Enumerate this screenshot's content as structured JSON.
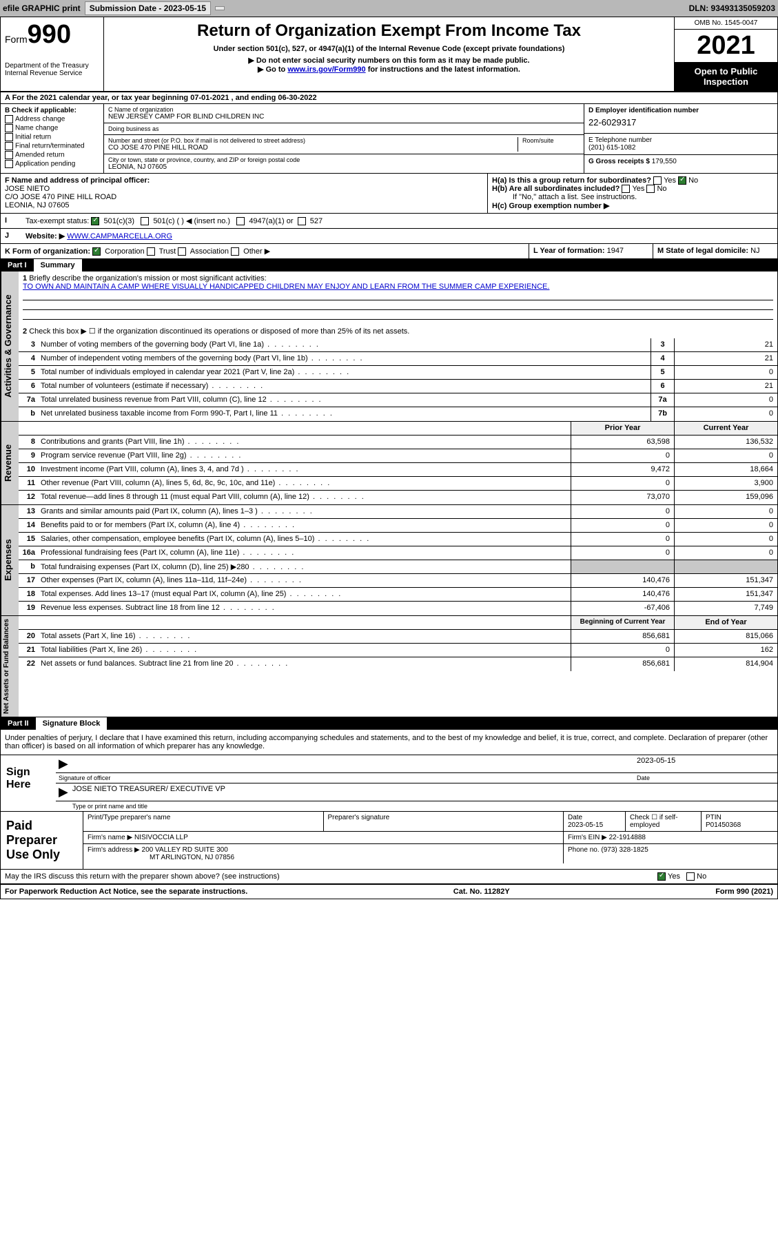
{
  "topbar": {
    "efile": "efile GRAPHIC print",
    "submission_label": "Submission Date - 2023-05-15",
    "dln_label": "DLN: 93493135059203"
  },
  "header": {
    "form_word": "Form",
    "form_num": "990",
    "title": "Return of Organization Exempt From Income Tax",
    "subtitle": "Under section 501(c), 527, or 4947(a)(1) of the Internal Revenue Code (except private foundations)",
    "note1": "▶ Do not enter social security numbers on this form as it may be made public.",
    "note2_pre": "▶ Go to ",
    "note2_link": "www.irs.gov/Form990",
    "note2_post": " for instructions and the latest information.",
    "dept": "Department of the Treasury\nInternal Revenue Service",
    "omb": "OMB No. 1545-0047",
    "year": "2021",
    "inspect": "Open to Public Inspection"
  },
  "lineA": "A For the 2021 calendar year, or tax year beginning 07-01-2021   , and ending 06-30-2022",
  "boxB": {
    "title": "B Check if applicable:",
    "opts": [
      "Address change",
      "Name change",
      "Initial return",
      "Final return/terminated",
      "Amended return",
      "Application pending"
    ]
  },
  "boxC": {
    "name_lab": "C Name of organization",
    "name": "NEW JERSEY CAMP FOR BLIND CHILDREN INC",
    "dba_lab": "Doing business as",
    "dba": "",
    "street_lab": "Number and street (or P.O. box if mail is not delivered to street address)",
    "room_lab": "Room/suite",
    "street": "CO JOSE 470 PINE HILL ROAD",
    "city_lab": "City or town, state or province, country, and ZIP or foreign postal code",
    "city": "LEONIA, NJ  07605"
  },
  "boxD": {
    "lab": "D Employer identification number",
    "val": "22-6029317"
  },
  "boxE": {
    "lab": "E Telephone number",
    "val": "(201) 615-1082"
  },
  "boxG": {
    "lab": "G Gross receipts $",
    "val": "179,550"
  },
  "boxF": {
    "lab": "F Name and address of principal officer:",
    "name": "JOSE NIETO",
    "addr1": "C/O JOSE 470 PINE HILL ROAD",
    "addr2": "LEONIA, NJ  07605"
  },
  "boxH": {
    "ha": "H(a)  Is this a group return for subordinates?",
    "hb": "H(b)  Are all subordinates included?",
    "hb_note": "If \"No,\" attach a list. See instructions.",
    "hc": "H(c)  Group exemption number ▶",
    "yes": "Yes",
    "no": "No"
  },
  "boxI": {
    "lab": "Tax-exempt status:",
    "o1": "501(c)(3)",
    "o2": "501(c) (   ) ◀ (insert no.)",
    "o3": "4947(a)(1) or",
    "o4": "527"
  },
  "boxJ": {
    "lab": "Website: ▶",
    "val": "WWW.CAMPMARCELLA.ORG"
  },
  "boxK": {
    "lab": "K Form of organization:",
    "o1": "Corporation",
    "o2": "Trust",
    "o3": "Association",
    "o4": "Other ▶"
  },
  "boxL": {
    "lab": "L Year of formation:",
    "val": "1947"
  },
  "boxM": {
    "lab": "M State of legal domicile:",
    "val": "NJ"
  },
  "part1": {
    "num": "Part I",
    "title": "Summary"
  },
  "summary": {
    "q1_lab": "Briefly describe the organization's mission or most significant activities:",
    "q1_val": "TO OWN AND MAINTAIN A CAMP WHERE VISUALLY HANDICAPPED CHILDREN MAY ENJOY AND LEARN FROM THE SUMMER CAMP EXPERIENCE.",
    "q2": "Check this box ▶ ☐  if the organization discontinued its operations or disposed of more than 25% of its net assets.",
    "rows_gov": [
      {
        "n": "3",
        "d": "Number of voting members of the governing body (Part VI, line 1a)",
        "box": "3",
        "v": "21"
      },
      {
        "n": "4",
        "d": "Number of independent voting members of the governing body (Part VI, line 1b)",
        "box": "4",
        "v": "21"
      },
      {
        "n": "5",
        "d": "Total number of individuals employed in calendar year 2021 (Part V, line 2a)",
        "box": "5",
        "v": "0"
      },
      {
        "n": "6",
        "d": "Total number of volunteers (estimate if necessary)",
        "box": "6",
        "v": "21"
      },
      {
        "n": "7a",
        "d": "Total unrelated business revenue from Part VIII, column (C), line 12",
        "box": "7a",
        "v": "0"
      },
      {
        "n": "b",
        "d": "Net unrelated business taxable income from Form 990-T, Part I, line 11",
        "box": "7b",
        "v": "0"
      }
    ],
    "col_py": "Prior Year",
    "col_cy": "Current Year",
    "rows_rev": [
      {
        "n": "8",
        "d": "Contributions and grants (Part VIII, line 1h)",
        "py": "63,598",
        "cy": "136,532"
      },
      {
        "n": "9",
        "d": "Program service revenue (Part VIII, line 2g)",
        "py": "0",
        "cy": "0"
      },
      {
        "n": "10",
        "d": "Investment income (Part VIII, column (A), lines 3, 4, and 7d )",
        "py": "9,472",
        "cy": "18,664"
      },
      {
        "n": "11",
        "d": "Other revenue (Part VIII, column (A), lines 5, 6d, 8c, 9c, 10c, and 11e)",
        "py": "0",
        "cy": "3,900"
      },
      {
        "n": "12",
        "d": "Total revenue—add lines 8 through 11 (must equal Part VIII, column (A), line 12)",
        "py": "73,070",
        "cy": "159,096"
      }
    ],
    "rows_exp": [
      {
        "n": "13",
        "d": "Grants and similar amounts paid (Part IX, column (A), lines 1–3 )",
        "py": "0",
        "cy": "0"
      },
      {
        "n": "14",
        "d": "Benefits paid to or for members (Part IX, column (A), line 4)",
        "py": "0",
        "cy": "0"
      },
      {
        "n": "15",
        "d": "Salaries, other compensation, employee benefits (Part IX, column (A), lines 5–10)",
        "py": "0",
        "cy": "0"
      },
      {
        "n": "16a",
        "d": "Professional fundraising fees (Part IX, column (A), line 11e)",
        "py": "0",
        "cy": "0"
      },
      {
        "n": "b",
        "d": "Total fundraising expenses (Part IX, column (D), line 25) ▶280",
        "py": "",
        "cy": "",
        "shade": true
      },
      {
        "n": "17",
        "d": "Other expenses (Part IX, column (A), lines 11a–11d, 11f–24e)",
        "py": "140,476",
        "cy": "151,347"
      },
      {
        "n": "18",
        "d": "Total expenses. Add lines 13–17 (must equal Part IX, column (A), line 25)",
        "py": "140,476",
        "cy": "151,347"
      },
      {
        "n": "19",
        "d": "Revenue less expenses. Subtract line 18 from line 12",
        "py": "-67,406",
        "cy": "7,749"
      }
    ],
    "col_boy": "Beginning of Current Year",
    "col_eoy": "End of Year",
    "rows_na": [
      {
        "n": "20",
        "d": "Total assets (Part X, line 16)",
        "py": "856,681",
        "cy": "815,066"
      },
      {
        "n": "21",
        "d": "Total liabilities (Part X, line 26)",
        "py": "0",
        "cy": "162"
      },
      {
        "n": "22",
        "d": "Net assets or fund balances. Subtract line 21 from line 20",
        "py": "856,681",
        "cy": "814,904"
      }
    ]
  },
  "side": {
    "gov": "Activities & Governance",
    "rev": "Revenue",
    "exp": "Expenses",
    "na": "Net Assets or Fund Balances"
  },
  "part2": {
    "num": "Part II",
    "title": "Signature Block"
  },
  "sig": {
    "decl": "Under penalties of perjury, I declare that I have examined this return, including accompanying schedules and statements, and to the best of my knowledge and belief, it is true, correct, and complete. Declaration of preparer (other than officer) is based on all information of which preparer has any knowledge.",
    "sign_here": "Sign Here",
    "sig_officer": "Signature of officer",
    "date": "Date",
    "date_val": "2023-05-15",
    "name_title": "JOSE NIETO  TREASURER/ EXECUTIVE VP",
    "name_title_lab": "Type or print name and title"
  },
  "prep": {
    "title": "Paid Preparer Use Only",
    "h1": "Print/Type preparer's name",
    "h2": "Preparer's signature",
    "h3": "Date",
    "h3v": "2023-05-15",
    "h4": "Check ☐ if self-employed",
    "h5": "PTIN",
    "h5v": "P01450368",
    "firm_lab": "Firm's name   ▶",
    "firm": "NISIVOCCIA LLP",
    "ein_lab": "Firm's EIN ▶",
    "ein": "22-1914888",
    "addr_lab": "Firm's address ▶",
    "addr1": "200 VALLEY RD SUITE 300",
    "addr2": "MT ARLINGTON, NJ  07856",
    "phone_lab": "Phone no.",
    "phone": "(973) 328-1825"
  },
  "may_discuss": "May the IRS discuss this return with the preparer shown above? (see instructions)",
  "footer": {
    "pra": "For Paperwork Reduction Act Notice, see the separate instructions.",
    "cat": "Cat. No. 11282Y",
    "form": "Form 990 (2021)"
  },
  "yes": "Yes",
  "no": "No"
}
